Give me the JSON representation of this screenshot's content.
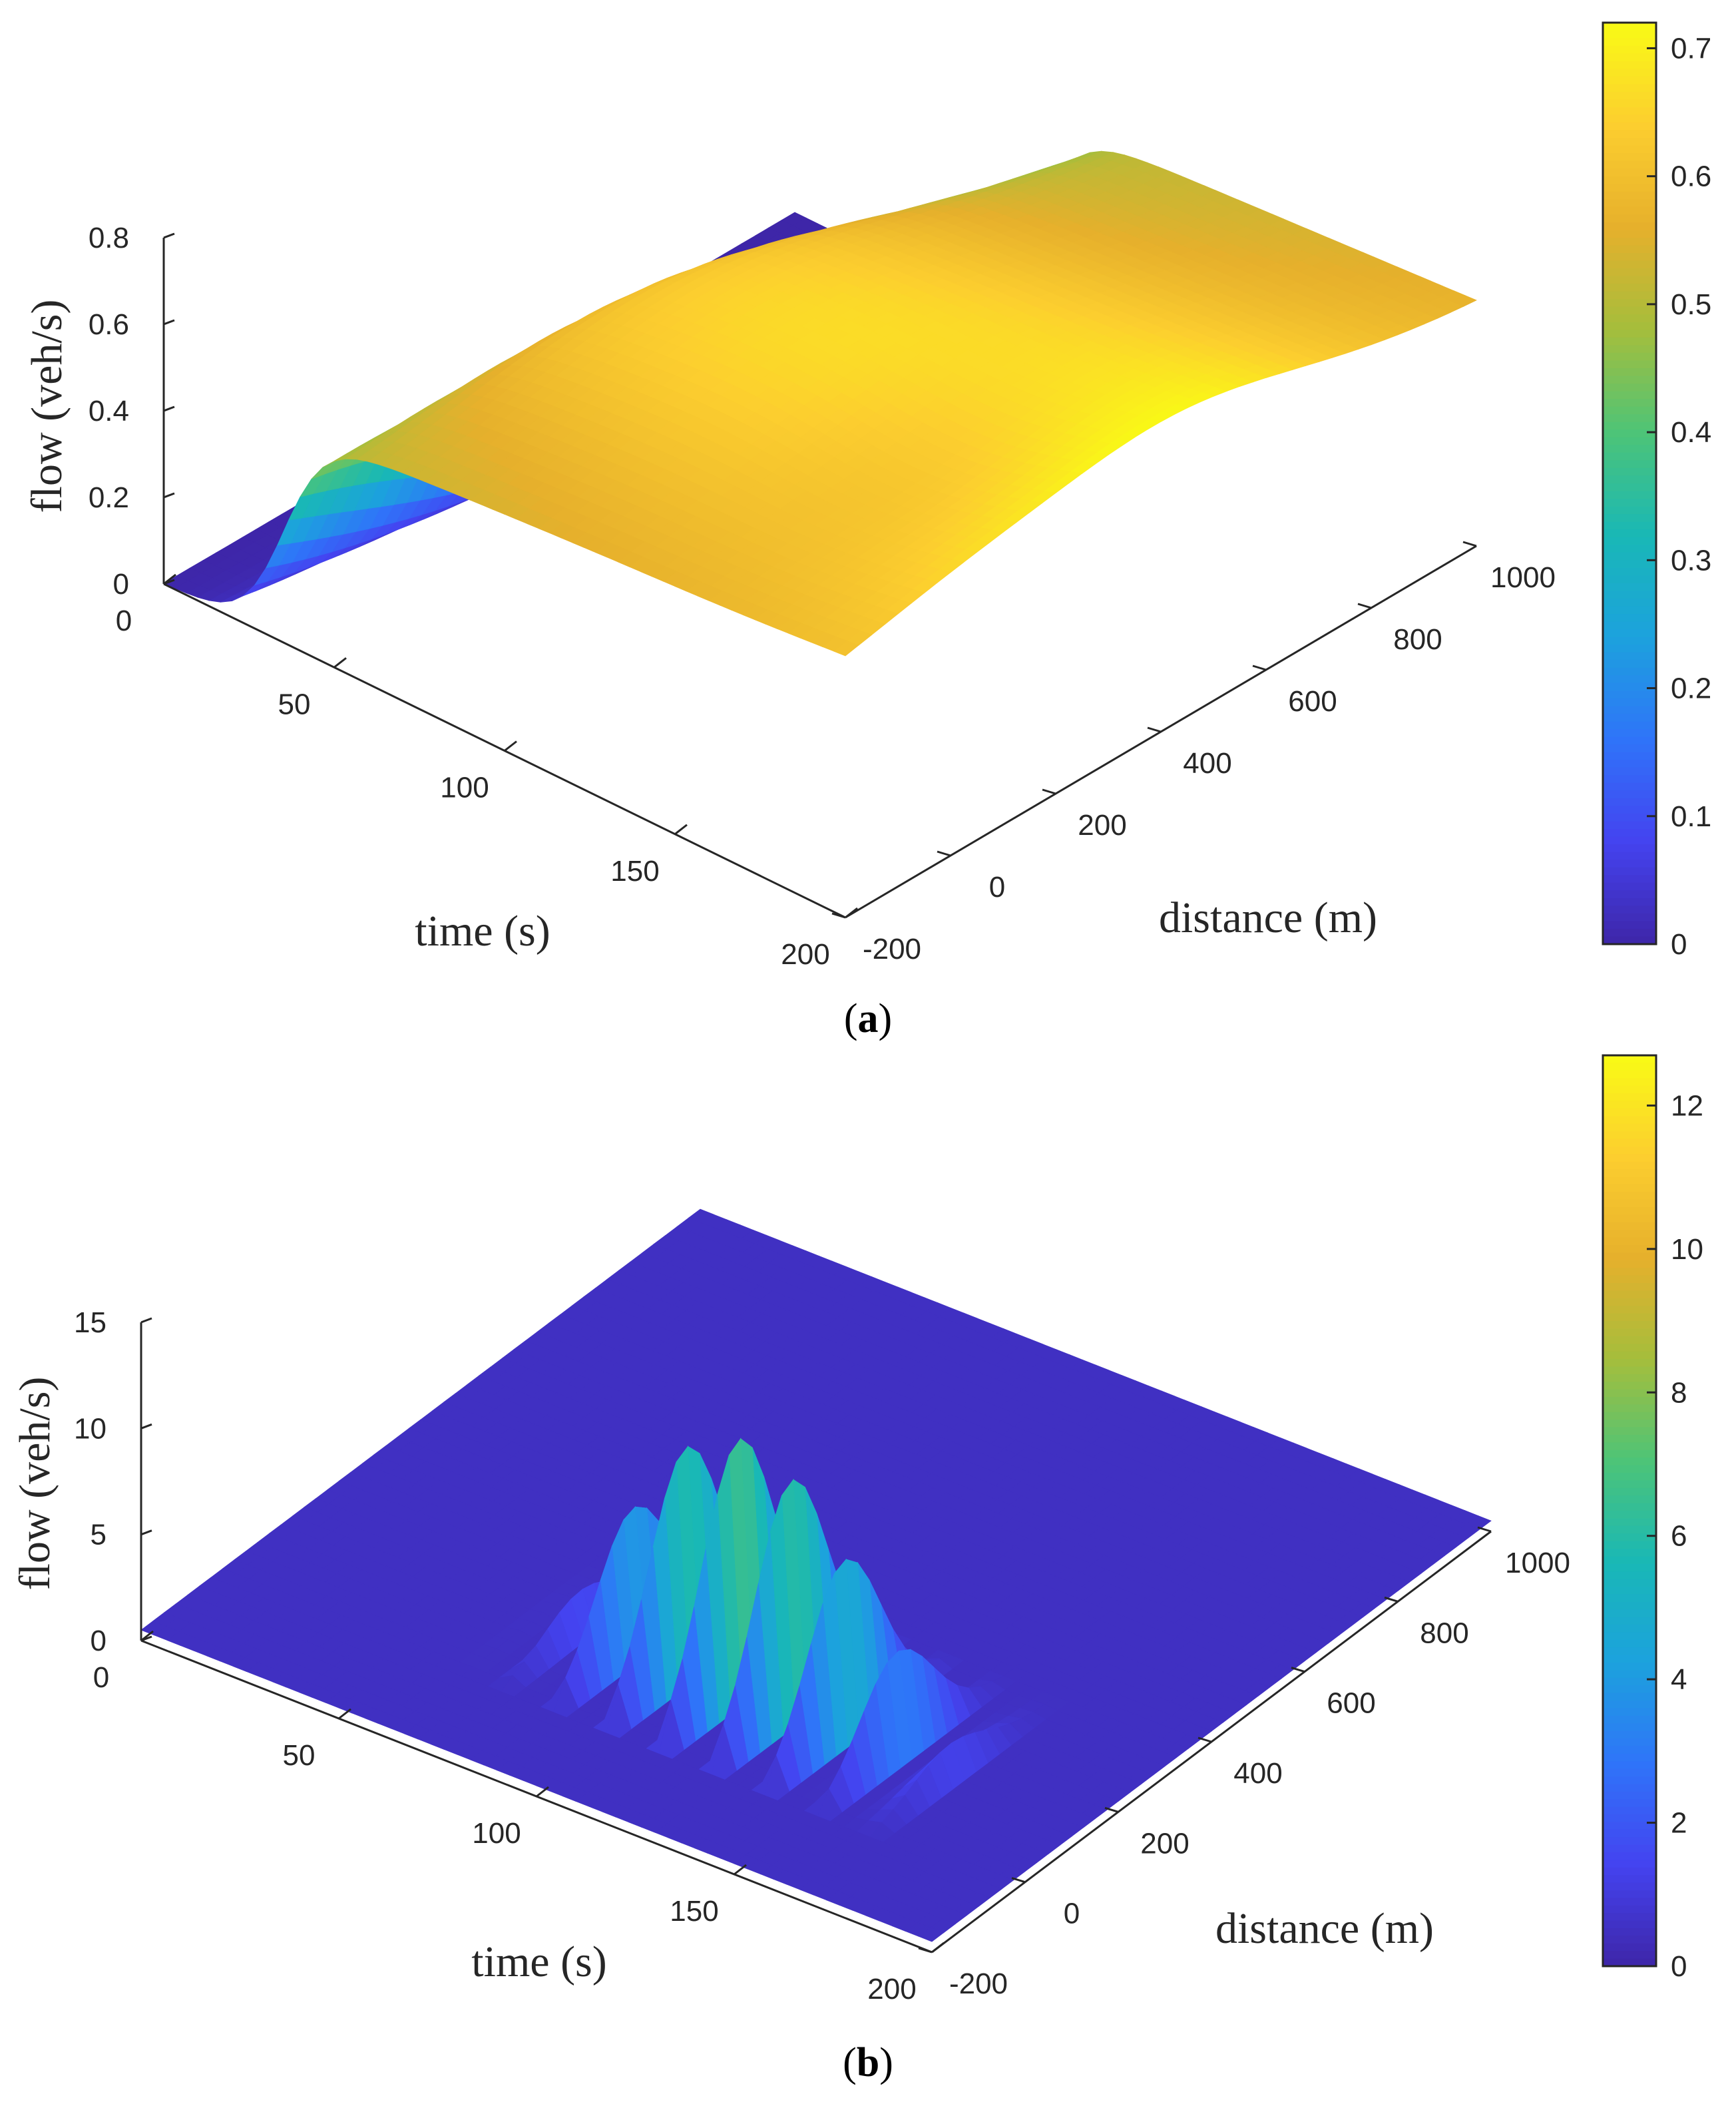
{
  "chart_data": [
    {
      "panel": "a",
      "caption_letter": "a",
      "type": "surface3d",
      "zlabel": "flow (veh/s)",
      "xlabel": "time (s)",
      "ylabel": "distance (m)",
      "xlim": [
        0,
        200
      ],
      "ylim": [
        -200,
        1000
      ],
      "zlim": [
        0,
        0.8
      ],
      "x_ticks": [
        "0",
        "50",
        "100",
        "150",
        "200"
      ],
      "y_ticks": [
        "-200",
        "0",
        "200",
        "400",
        "600",
        "800",
        "1000"
      ],
      "z_ticks": [
        "0",
        "0.2",
        "0.4",
        "0.6",
        "0.8"
      ],
      "colorbar": {
        "min": 0,
        "max": 0.72,
        "ticks": [
          "0",
          "0.1",
          "0.2",
          "0.3",
          "0.4",
          "0.5",
          "0.6",
          "0.7"
        ]
      },
      "surface_description": "Flow rises from 0 to about 0.4 veh/s near distance -200 m at early time, then grows to about 0.6-0.7 veh/s across most of the time-distance domain, with a dip around the middle distance range."
    },
    {
      "panel": "b",
      "caption_letter": "b",
      "type": "surface3d",
      "zlabel": "flow (veh/s)",
      "xlabel": "time (s)",
      "ylabel": "distance (m)",
      "xlim": [
        0,
        200
      ],
      "ylim": [
        -200,
        1000
      ],
      "zlim": [
        0,
        15
      ],
      "x_ticks": [
        "0",
        "50",
        "100",
        "150",
        "200"
      ],
      "y_ticks": [
        "-200",
        "0",
        "200",
        "400",
        "600",
        "800",
        "1000"
      ],
      "z_ticks": [
        "0",
        "5",
        "10",
        "15"
      ],
      "colorbar": {
        "min": 0,
        "max": 12.7,
        "ticks": [
          "0",
          "2",
          "4",
          "6",
          "8",
          "10",
          "12"
        ]
      },
      "surface_description": "Mostly flat low flow (~0.5 veh/s) surface with a cluster of oscillating spikes reaching about 12 veh/s between roughly time 60-170 s near distance 0-300 m."
    }
  ],
  "colormap": [
    "#3e26a8",
    "#4443f0",
    "#2f74f9",
    "#1ca2dd",
    "#19b8b5",
    "#4ec477",
    "#a5be3c",
    "#e6b02c",
    "#fcce2f",
    "#f9fb15"
  ]
}
